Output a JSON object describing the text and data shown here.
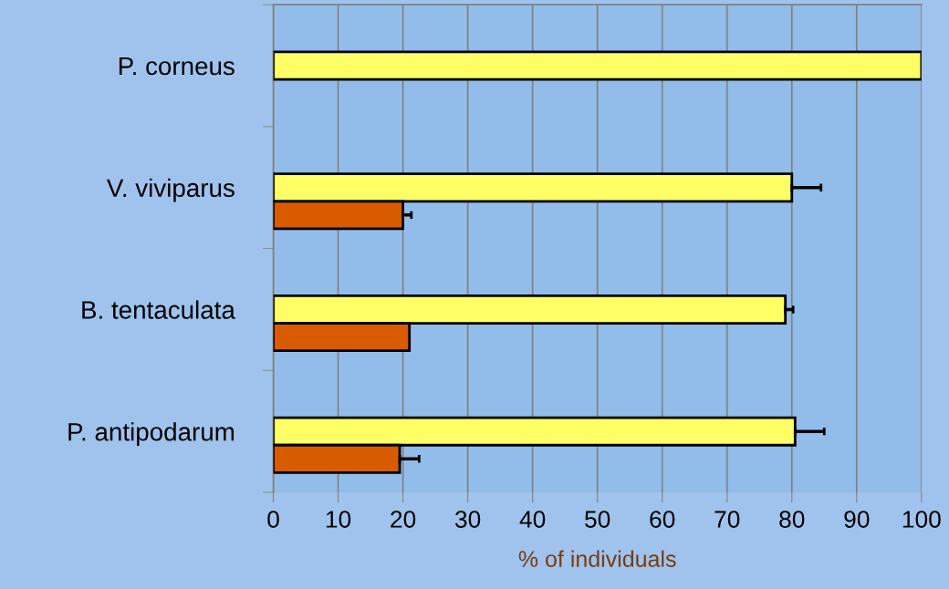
{
  "chart_data": {
    "type": "bar",
    "orientation": "horizontal",
    "xlabel": "% of individuals",
    "categories": [
      "P. corneus",
      "V. viviparus",
      "B. tentaculata",
      "P. antipodarum"
    ],
    "series": [
      {
        "color": "#ffff66",
        "values": [
          100,
          80,
          79,
          80.5
        ],
        "errors": [
          null,
          [
            80,
            84.5
          ],
          [
            79,
            80.2
          ],
          [
            80.5,
            85
          ]
        ]
      },
      {
        "color": "#d95b00",
        "values": [
          null,
          20,
          21,
          19.5
        ],
        "errors": [
          null,
          [
            20,
            21.3
          ],
          null,
          [
            19.5,
            22.5
          ]
        ]
      }
    ],
    "xlim": [
      0,
      100
    ],
    "xticks": [
      0,
      10,
      20,
      30,
      40,
      50,
      60,
      70,
      80,
      90,
      100
    ],
    "grid": "x",
    "legend": false
  }
}
